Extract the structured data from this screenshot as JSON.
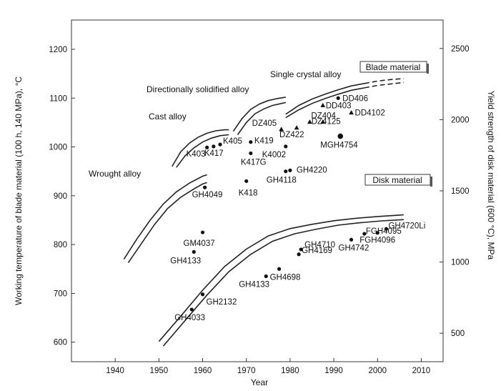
{
  "chart_data": {
    "type": "scatter",
    "title": "",
    "xlabel": "Year",
    "ylabel": "Working temperature of blade material (100 h, 140 MPa), °C",
    "y2label": "Yield strength of disk material (600 °C), MPa",
    "xlim": [
      1930,
      2015
    ],
    "ylim": [
      560,
      1260
    ],
    "y2lim": [
      300,
      2700
    ],
    "x_ticks": [
      1940,
      1950,
      1960,
      1970,
      1980,
      1990,
      2000,
      2010
    ],
    "y_ticks": [
      600,
      700,
      800,
      900,
      1000,
      1100,
      1200
    ],
    "y2_ticks": [
      500,
      1000,
      1500,
      2000,
      2500
    ],
    "legend_boxes": [
      "Blade material",
      "Disk material"
    ],
    "curve_labels": [
      "Wrought alloy",
      "Cast alloy",
      "Directionally solidified alloy",
      "Single crystal alloy"
    ],
    "bands": [
      {
        "name": "Wrought alloy",
        "axis": "left",
        "upper": [
          [
            1942,
            770
          ],
          [
            1945,
            812
          ],
          [
            1948,
            850
          ],
          [
            1951,
            883
          ],
          [
            1954,
            908
          ],
          [
            1957,
            926
          ],
          [
            1960,
            940
          ],
          [
            1961,
            943
          ]
        ],
        "lower": [
          [
            1943,
            763
          ],
          [
            1946,
            802
          ],
          [
            1949,
            841
          ],
          [
            1952,
            874
          ],
          [
            1955,
            897
          ],
          [
            1958,
            914
          ],
          [
            1960,
            924
          ],
          [
            1961,
            927
          ]
        ]
      },
      {
        "name": "Cast alloy",
        "axis": "left",
        "upper": [
          [
            1953,
            960
          ],
          [
            1955,
            990
          ],
          [
            1957,
            1008
          ],
          [
            1959,
            1020
          ],
          [
            1961,
            1028
          ],
          [
            1963,
            1033
          ],
          [
            1965,
            1035
          ],
          [
            1966,
            1035
          ]
        ],
        "lower": [
          [
            1954,
            958
          ],
          [
            1956,
            982
          ],
          [
            1958,
            998
          ],
          [
            1960,
            1010
          ],
          [
            1962,
            1018
          ],
          [
            1964,
            1023
          ],
          [
            1966,
            1025
          ]
        ]
      },
      {
        "name": "Directionally solidified alloy",
        "axis": "left",
        "upper": [
          [
            1967,
            1032
          ],
          [
            1969,
            1058
          ],
          [
            1971,
            1077
          ],
          [
            1973,
            1088
          ],
          [
            1975,
            1095
          ],
          [
            1977,
            1099
          ],
          [
            1979,
            1102
          ]
        ],
        "lower": [
          [
            1968,
            1025
          ],
          [
            1970,
            1050
          ],
          [
            1972,
            1068
          ],
          [
            1974,
            1078
          ],
          [
            1976,
            1085
          ],
          [
            1978,
            1089
          ],
          [
            1979,
            1091
          ]
        ]
      },
      {
        "name": "Single crystal alloy",
        "axis": "left",
        "upper": [
          [
            1979,
            1067
          ],
          [
            1982,
            1085
          ],
          [
            1985,
            1098
          ],
          [
            1988,
            1108
          ],
          [
            1991,
            1117
          ],
          [
            1994,
            1125
          ],
          [
            1997,
            1130
          ],
          [
            2000,
            1135
          ],
          [
            2003,
            1138
          ],
          [
            2006,
            1140
          ]
        ],
        "lower": [
          [
            1979,
            1060
          ],
          [
            1982,
            1076
          ],
          [
            1985,
            1089
          ],
          [
            1988,
            1099
          ],
          [
            1991,
            1108
          ],
          [
            1994,
            1116
          ],
          [
            1997,
            1121
          ],
          [
            2000,
            1126
          ],
          [
            2003,
            1129
          ],
          [
            2006,
            1132
          ]
        ],
        "dashed_from": 1997
      },
      {
        "name": "Disk material",
        "axis": "right",
        "upper": [
          [
            1950,
            442
          ],
          [
            1955,
            620
          ],
          [
            1960,
            802
          ],
          [
            1965,
            968
          ],
          [
            1970,
            1091
          ],
          [
            1975,
            1183
          ],
          [
            1980,
            1235
          ],
          [
            1985,
            1265
          ],
          [
            1990,
            1290
          ],
          [
            1995,
            1307
          ],
          [
            2000,
            1320
          ],
          [
            2005,
            1330
          ],
          [
            2006,
            1332
          ]
        ],
        "lower": [
          [
            1951,
            410
          ],
          [
            1956,
            590
          ],
          [
            1961,
            768
          ],
          [
            1966,
            932
          ],
          [
            1971,
            1054
          ],
          [
            1976,
            1146
          ],
          [
            1981,
            1198
          ],
          [
            1986,
            1231
          ],
          [
            1991,
            1259
          ],
          [
            1996,
            1276
          ],
          [
            2001,
            1289
          ],
          [
            2006,
            1298
          ]
        ]
      }
    ],
    "series": [
      {
        "name": "Blade material",
        "axis": "left",
        "points": [
          {
            "label": "K403",
            "x": 1961,
            "y": 999,
            "marker": "circle"
          },
          {
            "label": "K417",
            "x": 1962.5,
            "y": 1001,
            "marker": "circle"
          },
          {
            "label": "K405",
            "x": 1964,
            "y": 1005,
            "marker": "circle"
          },
          {
            "label": "K419",
            "x": 1971,
            "y": 1010,
            "marker": "circle"
          },
          {
            "label": "K417G",
            "x": 1971,
            "y": 987,
            "marker": "circle"
          },
          {
            "label": "K418",
            "x": 1970,
            "y": 930,
            "marker": "circle"
          },
          {
            "label": "K4002",
            "x": 1979,
            "y": 1001,
            "marker": "circle"
          },
          {
            "label": "GH4220",
            "x": 1980,
            "y": 952,
            "marker": "circle"
          },
          {
            "label": "GH4118",
            "x": 1979,
            "y": 950,
            "marker": "circle"
          },
          {
            "label": "GH4049",
            "x": 1960.5,
            "y": 917,
            "marker": "circle"
          },
          {
            "label": "DZ405",
            "x": 1978,
            "y": 1036,
            "marker": "triangle"
          },
          {
            "label": "DZ404",
            "x": 1984.5,
            "y": 1051,
            "marker": "triangle"
          },
          {
            "label": "DZ422",
            "x": 1981.5,
            "y": 1039,
            "marker": "triangle"
          },
          {
            "label": "DZ4125",
            "x": 1987.5,
            "y": 1051,
            "marker": "triangle"
          },
          {
            "label": "DD406",
            "x": 1991,
            "y": 1100,
            "marker": "circle"
          },
          {
            "label": "DD403",
            "x": 1987.5,
            "y": 1085,
            "marker": "triangle"
          },
          {
            "label": "DD4102",
            "x": 1994,
            "y": 1070,
            "marker": "triangle"
          },
          {
            "label": "MGH4754",
            "x": 1991.5,
            "y": 1022,
            "marker": "bigcircle"
          }
        ]
      },
      {
        "name": "Disk material",
        "axis": "left",
        "points": [
          {
            "label": "GM4037",
            "x": 1960,
            "y": 825,
            "marker": "circle"
          },
          {
            "label": "GH4133",
            "x": 1958,
            "y": 785,
            "marker": "circle"
          },
          {
            "label": "GH2132",
            "x": 1960,
            "y": 698,
            "marker": "circle"
          },
          {
            "label": "GH4033",
            "x": 1957.5,
            "y": 667,
            "marker": "circle"
          },
          {
            "label": "GH4133",
            "x": 1974.5,
            "y": 735,
            "marker": "circle"
          },
          {
            "label": "GH4698",
            "x": 1977.5,
            "y": 750,
            "marker": "circle"
          },
          {
            "label": "GH4169",
            "x": 1982,
            "y": 780,
            "marker": "circle"
          },
          {
            "label": "GH4710",
            "x": 1982.5,
            "y": 790,
            "marker": "circle"
          },
          {
            "label": "GH4742",
            "x": 1994,
            "y": 810,
            "marker": "circle"
          },
          {
            "label": "FGH4095",
            "x": 1997,
            "y": 822,
            "marker": "circle"
          },
          {
            "label": "FGH4096",
            "x": 2000,
            "y": 824,
            "marker": "circle"
          },
          {
            "label": "GH4720Li",
            "x": 2002,
            "y": 832,
            "marker": "circle"
          }
        ]
      }
    ]
  }
}
